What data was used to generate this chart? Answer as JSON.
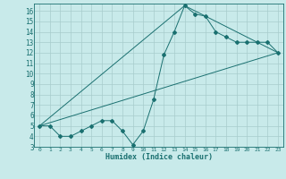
{
  "xlabel": "Humidex (Indice chaleur)",
  "bg_color": "#c8eaea",
  "line_color": "#1a7070",
  "grid_color": "#a8cccc",
  "xlim": [
    -0.5,
    23.5
  ],
  "ylim": [
    3,
    16.7
  ],
  "xticks": [
    0,
    1,
    2,
    3,
    4,
    5,
    6,
    7,
    8,
    9,
    10,
    11,
    12,
    13,
    14,
    15,
    16,
    17,
    18,
    19,
    20,
    21,
    22,
    23
  ],
  "yticks": [
    3,
    4,
    5,
    6,
    7,
    8,
    9,
    10,
    11,
    12,
    13,
    14,
    15,
    16
  ],
  "line1_x": [
    0,
    1,
    2,
    3,
    4,
    5,
    6,
    7,
    8,
    9,
    10,
    11,
    12,
    13,
    14,
    15,
    16,
    17,
    18,
    19,
    20,
    21,
    22,
    23
  ],
  "line1_y": [
    5.0,
    5.0,
    4.0,
    4.0,
    4.5,
    5.0,
    5.5,
    5.5,
    4.5,
    3.2,
    4.5,
    7.5,
    11.8,
    14.0,
    16.5,
    15.7,
    15.5,
    14.0,
    13.5,
    13.0,
    13.0,
    13.0,
    13.0,
    12.0
  ],
  "line2_x": [
    0,
    23
  ],
  "line2_y": [
    5.0,
    12.0
  ],
  "line3_x": [
    0,
    14,
    23
  ],
  "line3_y": [
    5.0,
    16.5,
    12.0
  ],
  "markersize": 2.0
}
